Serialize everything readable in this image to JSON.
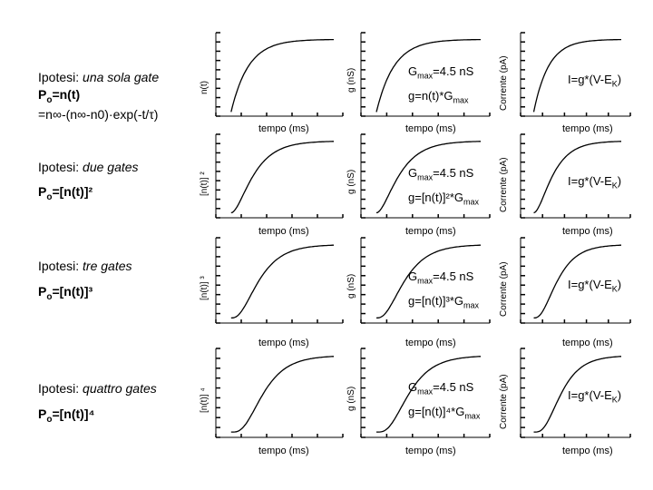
{
  "rows": [
    {
      "hypothesis_prefix": "Ipotesi:",
      "hypothesis_italic": "una sola gate",
      "po_label": "P",
      "po_sub": "o",
      "po_expr": "=n(t)",
      "formula_text": "=n∞-(n∞-n0)·exp(-t/τ)",
      "ylabel_n": "n(t)",
      "ylabel_g": "g (nS)",
      "ylabel_i": "Corrente (pA)",
      "xlabel": "tempo (ms)",
      "gmax_prefix": "G",
      "gmax_sub": "max",
      "gmax_value": "=4.5 nS",
      "g_eq_prefix": "g=n(t)*G",
      "g_eq_sub": "max",
      "i_eq_prefix": "I=g*(V-E",
      "i_eq_sub": "K",
      "i_eq_suffix": ")",
      "power": 1
    },
    {
      "hypothesis_prefix": "Ipotesi:",
      "hypothesis_italic": "due gates",
      "po_label": "P",
      "po_sub": "o",
      "po_expr": "=[n(t)]²",
      "ylabel_n": "[n(t)] ²",
      "ylabel_g": "g (nS)",
      "ylabel_i": "Corrente (pA)",
      "xlabel": "tempo (ms)",
      "gmax_prefix": "G",
      "gmax_sub": "max",
      "gmax_value": "=4.5 nS",
      "g_eq_prefix": "g=[n(t)]²*G",
      "g_eq_sub": "max",
      "i_eq_prefix": "I=g*(V-E",
      "i_eq_sub": "K",
      "i_eq_suffix": ")",
      "power": 2
    },
    {
      "hypothesis_prefix": "Ipotesi:",
      "hypothesis_italic": "tre gates",
      "po_label": "P",
      "po_sub": "o",
      "po_expr": "=[n(t)]³",
      "ylabel_n": "[n(t)] ³",
      "ylabel_g": "g (nS)",
      "ylabel_i": "Corrente (pA)",
      "xlabel": "tempo (ms)",
      "gmax_prefix": "G",
      "gmax_sub": "max",
      "gmax_value": "=4.5 nS",
      "g_eq_prefix": "g=[n(t)]³*G",
      "g_eq_sub": "max",
      "i_eq_prefix": "I=g*(V-E",
      "i_eq_sub": "K",
      "i_eq_suffix": ")",
      "power": 3
    },
    {
      "hypothesis_prefix": "Ipotesi:",
      "hypothesis_italic": "quattro gates",
      "po_label": "P",
      "po_sub": "o",
      "po_expr": "=[n(t)]⁴",
      "ylabel_n": "[n(t)] ⁴",
      "ylabel_g": "g (nS)",
      "ylabel_i": "Corrente (pA)",
      "xlabel": "tempo (ms)",
      "gmax_prefix": "G",
      "gmax_sub": "max",
      "gmax_value": "=4.5 nS",
      "g_eq_prefix": "g=[n(t)]⁴*G",
      "g_eq_sub": "max",
      "i_eq_prefix": "I=g*(V-E",
      "i_eq_sub": "K",
      "i_eq_suffix": ")",
      "power": 4
    }
  ]
}
